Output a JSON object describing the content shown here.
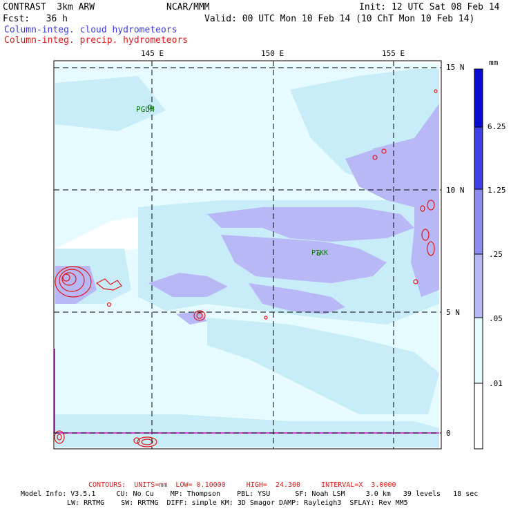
{
  "header": {
    "model": "CONTRAST  3km ARW",
    "org": "NCAR/MMM",
    "init": "Init: 12 UTC Sat 08 Feb 14",
    "fcst": "Fcst:   36 h",
    "valid": "Valid: 00 UTC Mon 10 Feb 14 (10 ChT Mon 10 Feb 14)",
    "field1": "Column-integ. cloud hydrometeors",
    "field2": "Column-integ. precip. hydrometeors"
  },
  "colors": {
    "field1": "#3a3ae0",
    "field2": "#e01818",
    "contour": "#e01818",
    "station": "#0a7a0a",
    "boundary": "#e000e0",
    "level_01": "#e6fbff",
    "level_05": "#c8ecf8",
    "level_25": "#b8b8f6",
    "level_125": "#8c8cf0",
    "level_625": "#4040e6",
    "level_top": "#0a0ad8"
  },
  "map": {
    "lon_labels": [
      "145 E",
      "150 E",
      "155 E"
    ],
    "lat_labels": [
      "15 N",
      "10 N",
      "5 N",
      "0"
    ],
    "stations": [
      "PGUM",
      "PTKK"
    ]
  },
  "colorbar": {
    "unit": "mm",
    "labels": [
      "6.25",
      "1.25",
      ".25",
      ".05",
      ".01"
    ]
  },
  "footer": {
    "contours": "CONTOURS:  UNITS=mm  LOW= 0.10000     HIGH=  24.300     INTERVAL=X  3.0000",
    "line1": "Model Info: V3.5.1     CU: No Cu    MP: Thompson    PBL: YSU      SF: Noah LSM     3.0 km   39 levels   18 sec",
    "line2": "LW: RRTMG    SW: RRTMG  DIFF: simple KM: 3D Smagor DAMP: Rayleigh3  SFLAY: Rev MM5"
  }
}
